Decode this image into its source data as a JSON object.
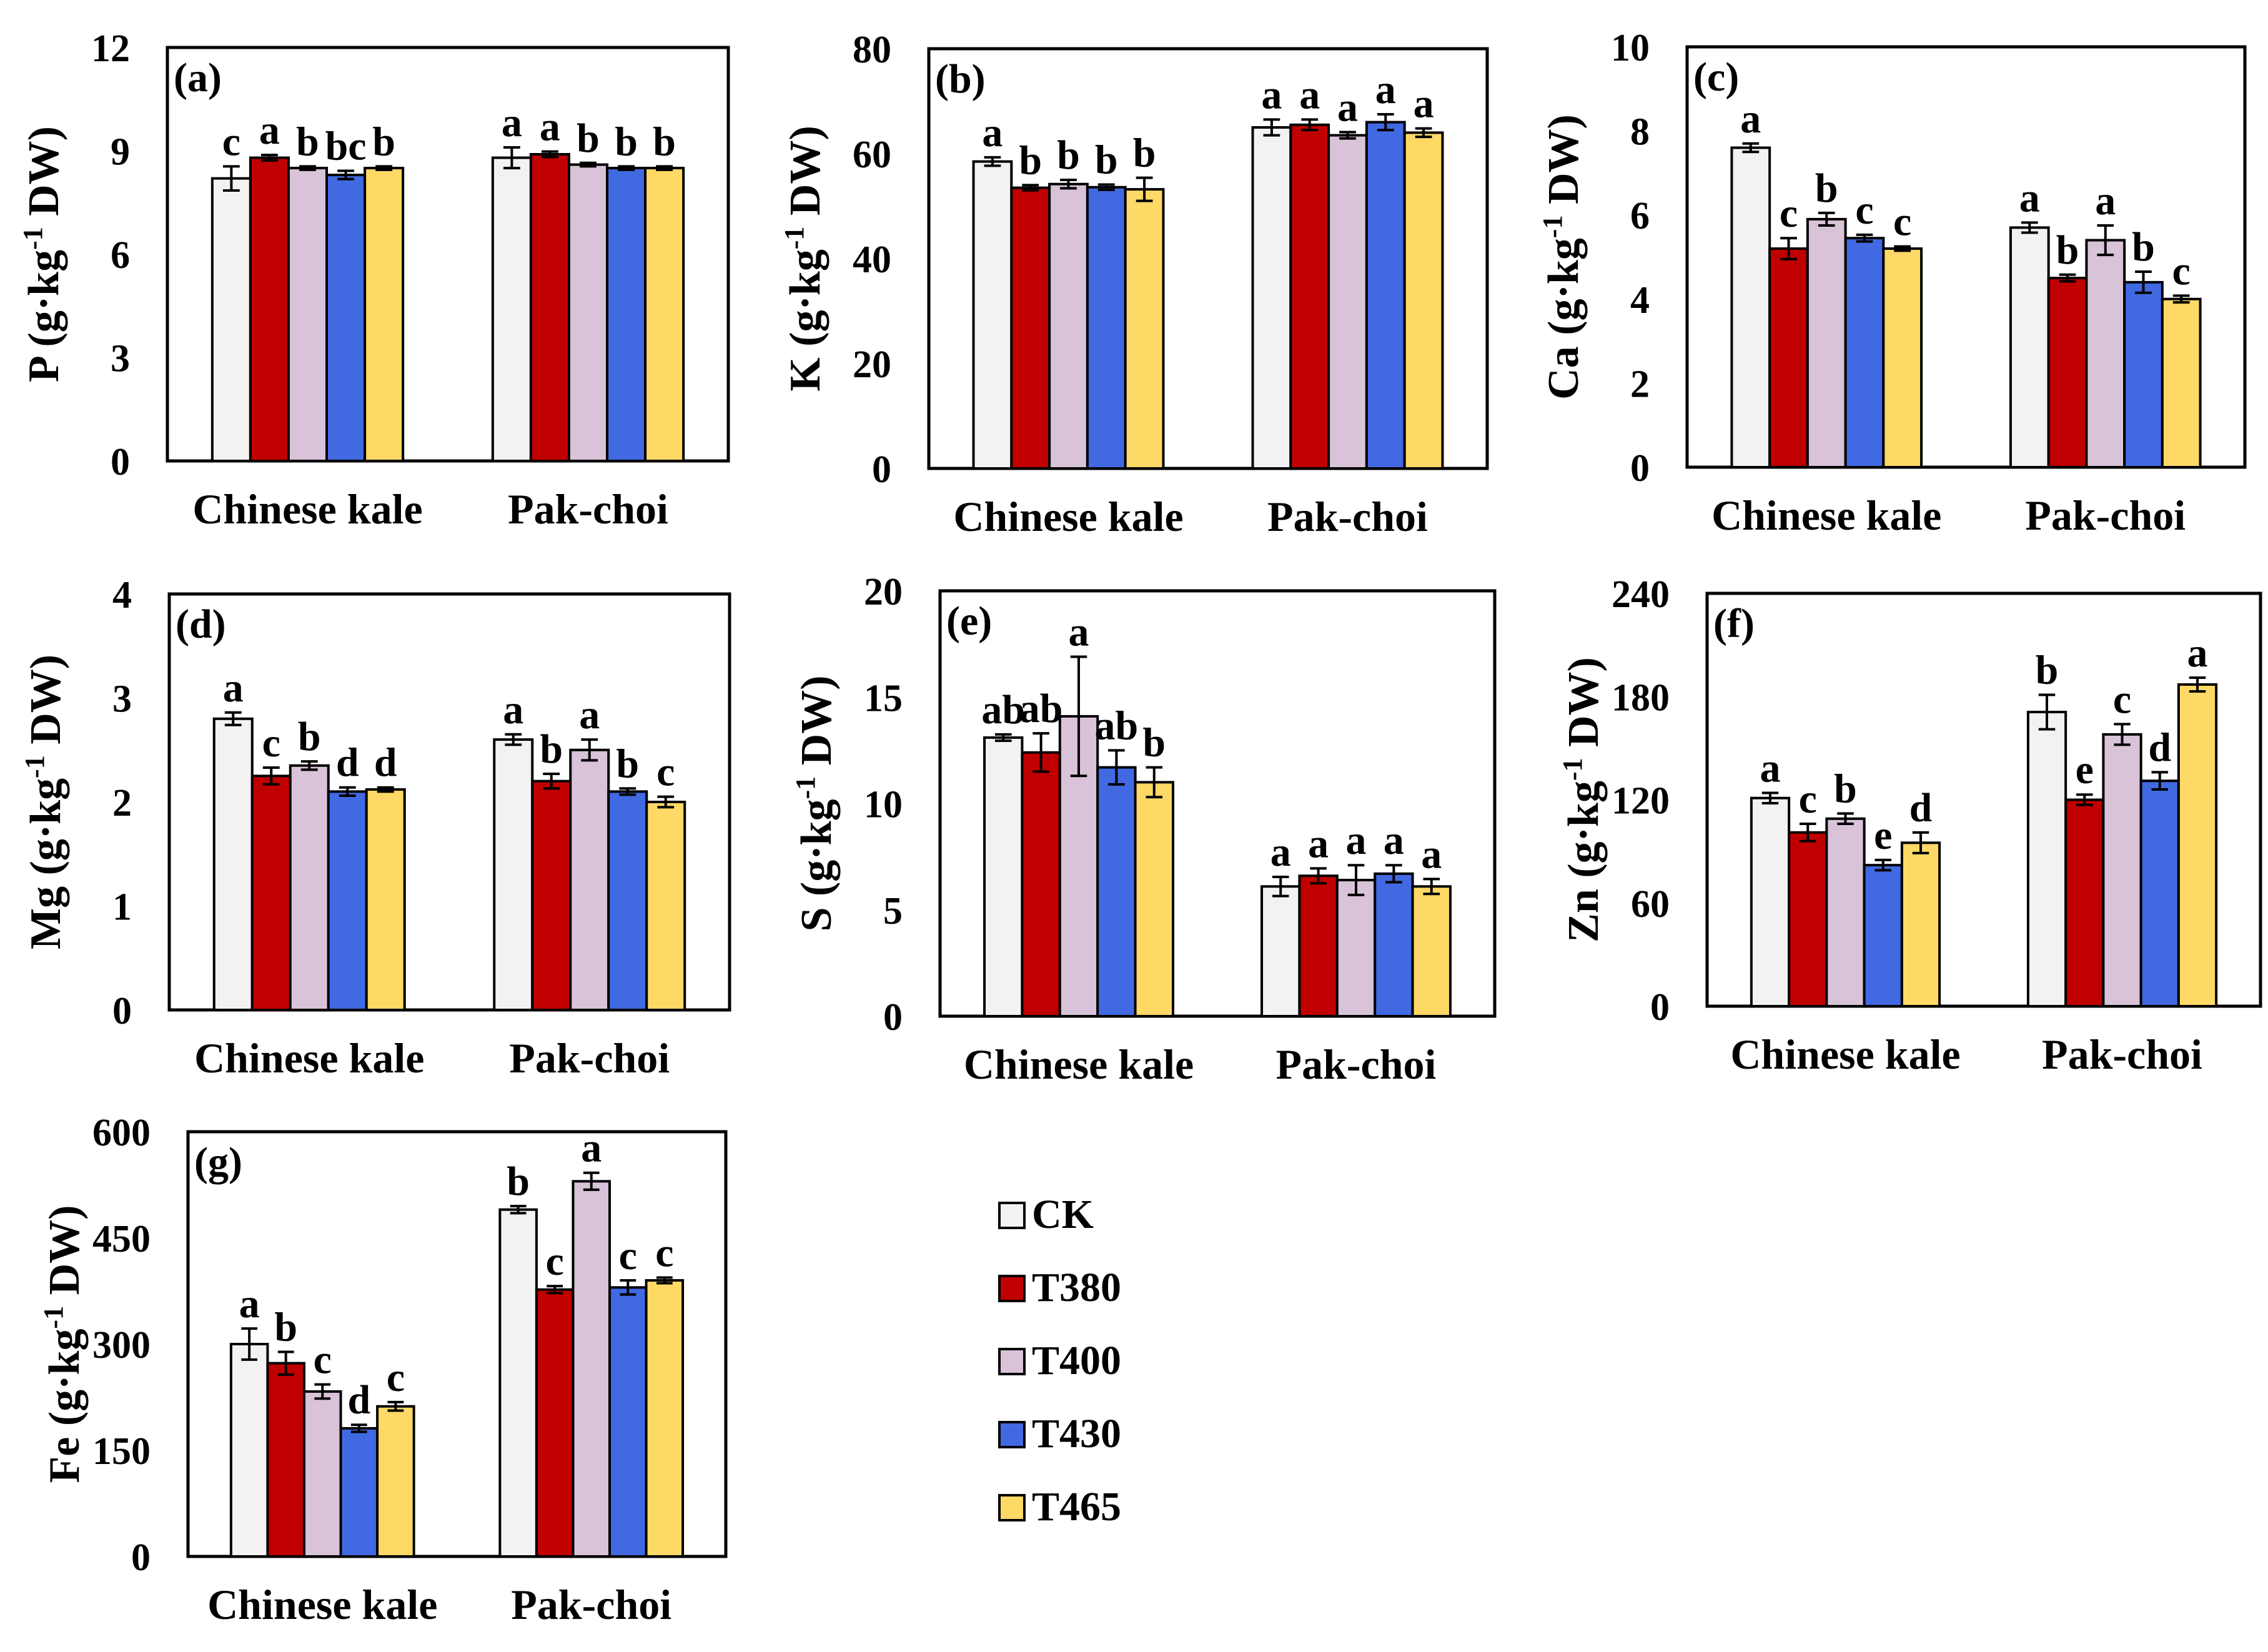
{
  "series_names": [
    "CK",
    "T380",
    "T400",
    "T430",
    "T465"
  ],
  "colors": {
    "CK": "#f2f2f2",
    "T380": "#c00000",
    "T400": "#d9c3d9",
    "T430": "#4169e1",
    "T465": "#ffd966",
    "axis": "#000000"
  },
  "chart_data": [
    {
      "type": "bar",
      "panel": "(a)",
      "ylabel_main": "P (g·kg",
      "ylabel_sup": "-1",
      "ylabel_tail": " DW)",
      "ylim": [
        0,
        12
      ],
      "yticks": [
        "0",
        "3",
        "6",
        "9",
        "12"
      ],
      "categories": [
        "Chinese kale",
        "Pak-choi"
      ],
      "series": [
        {
          "name": "CK",
          "values": [
            8.2,
            8.8
          ],
          "errors": [
            0.35,
            0.3
          ],
          "letters": [
            "c",
            "a"
          ]
        },
        {
          "name": "T380",
          "values": [
            8.8,
            8.9
          ],
          "errors": [
            0.08,
            0.08
          ],
          "letters": [
            "a",
            "a"
          ]
        },
        {
          "name": "T400",
          "values": [
            8.5,
            8.6
          ],
          "errors": [
            0.05,
            0.05
          ],
          "letters": [
            "b",
            "b"
          ]
        },
        {
          "name": "T430",
          "values": [
            8.3,
            8.5
          ],
          "errors": [
            0.12,
            0.05
          ],
          "letters": [
            "bc",
            "b"
          ]
        },
        {
          "name": "T465",
          "values": [
            8.5,
            8.5
          ],
          "errors": [
            0.05,
            0.05
          ],
          "letters": [
            "b",
            "b"
          ]
        }
      ]
    },
    {
      "type": "bar",
      "panel": "(b)",
      "ylabel_main": "K (g·kg",
      "ylabel_sup": "-1",
      "ylabel_tail": " DW)",
      "ylim": [
        0,
        80
      ],
      "yticks": [
        "0",
        "20",
        "40",
        "60",
        "80"
      ],
      "categories": [
        "Chinese kale",
        "Pak-choi"
      ],
      "series": [
        {
          "name": "CK",
          "values": [
            58.5,
            65
          ],
          "errors": [
            0.8,
            1.5
          ],
          "letters": [
            "a",
            "a"
          ]
        },
        {
          "name": "T380",
          "values": [
            53.5,
            65.5
          ],
          "errors": [
            0.5,
            1.0
          ],
          "letters": [
            "b",
            "a"
          ]
        },
        {
          "name": "T400",
          "values": [
            54.2,
            63.5
          ],
          "errors": [
            0.8,
            0.6
          ],
          "letters": [
            "b",
            "a"
          ]
        },
        {
          "name": "T430",
          "values": [
            53.6,
            66
          ],
          "errors": [
            0.5,
            1.5
          ],
          "letters": [
            "b",
            "a"
          ]
        },
        {
          "name": "T465",
          "values": [
            53.2,
            64
          ],
          "errors": [
            2.2,
            0.8
          ],
          "letters": [
            "b",
            "a"
          ]
        }
      ]
    },
    {
      "type": "bar",
      "panel": "(c)",
      "ylabel_main": "Ca (g·kg",
      "ylabel_sup": "-1",
      "ylabel_tail": " DW)",
      "ylim": [
        0,
        10
      ],
      "yticks": [
        "0",
        "2",
        "4",
        "6",
        "8",
        "10"
      ],
      "categories": [
        "Chinese kale",
        "Pak-choi"
      ],
      "series": [
        {
          "name": "CK",
          "values": [
            7.6,
            5.7
          ],
          "errors": [
            0.1,
            0.12
          ],
          "letters": [
            "a",
            "a"
          ]
        },
        {
          "name": "T380",
          "values": [
            5.2,
            4.5
          ],
          "errors": [
            0.25,
            0.08
          ],
          "letters": [
            "c",
            "b"
          ]
        },
        {
          "name": "T400",
          "values": [
            5.9,
            5.4
          ],
          "errors": [
            0.15,
            0.35
          ],
          "letters": [
            "b",
            "a"
          ]
        },
        {
          "name": "T430",
          "values": [
            5.45,
            4.4
          ],
          "errors": [
            0.08,
            0.25
          ],
          "letters": [
            "c",
            "b"
          ]
        },
        {
          "name": "T465",
          "values": [
            5.2,
            4.0
          ],
          "errors": [
            0.05,
            0.08
          ],
          "letters": [
            "c",
            "c"
          ]
        }
      ]
    },
    {
      "type": "bar",
      "panel": "(d)",
      "ylabel_main": "Mg (g·kg",
      "ylabel_sup": "-1",
      "ylabel_tail": " DW)",
      "ylim": [
        0,
        4
      ],
      "yticks": [
        "0",
        "1",
        "2",
        "3",
        "4"
      ],
      "categories": [
        "Chinese kale",
        "Pak-choi"
      ],
      "series": [
        {
          "name": "CK",
          "values": [
            2.8,
            2.6
          ],
          "errors": [
            0.06,
            0.05
          ],
          "letters": [
            "a",
            "a"
          ]
        },
        {
          "name": "T380",
          "values": [
            2.25,
            2.2
          ],
          "errors": [
            0.08,
            0.07
          ],
          "letters": [
            "c",
            "b"
          ]
        },
        {
          "name": "T400",
          "values": [
            2.35,
            2.5
          ],
          "errors": [
            0.04,
            0.1
          ],
          "letters": [
            "b",
            "a"
          ]
        },
        {
          "name": "T430",
          "values": [
            2.1,
            2.1
          ],
          "errors": [
            0.04,
            0.03
          ],
          "letters": [
            "d",
            "b"
          ]
        },
        {
          "name": "T465",
          "values": [
            2.12,
            2.0
          ],
          "errors": [
            0.02,
            0.05
          ],
          "letters": [
            "d",
            "c"
          ]
        }
      ]
    },
    {
      "type": "bar",
      "panel": "(e)",
      "ylabel_main": "S (g·kg",
      "ylabel_sup": "-1",
      "ylabel_tail": " DW)",
      "ylim": [
        0,
        20
      ],
      "yticks": [
        "0",
        "5",
        "10",
        "15",
        "20"
      ],
      "categories": [
        "Chinese kale",
        "Pak-choi"
      ],
      "series": [
        {
          "name": "CK",
          "values": [
            13.1,
            6.1
          ],
          "errors": [
            0.15,
            0.45
          ],
          "letters": [
            "ab",
            "a"
          ]
        },
        {
          "name": "T380",
          "values": [
            12.4,
            6.6
          ],
          "errors": [
            0.9,
            0.35
          ],
          "letters": [
            "ab",
            "a"
          ]
        },
        {
          "name": "T400",
          "values": [
            14.1,
            6.4
          ],
          "errors": [
            2.8,
            0.7
          ],
          "letters": [
            "a",
            "a"
          ]
        },
        {
          "name": "T430",
          "values": [
            11.7,
            6.7
          ],
          "errors": [
            0.8,
            0.4
          ],
          "letters": [
            "ab",
            "a"
          ]
        },
        {
          "name": "T465",
          "values": [
            11.0,
            6.1
          ],
          "errors": [
            0.7,
            0.35
          ],
          "letters": [
            "b",
            "a"
          ]
        }
      ]
    },
    {
      "type": "bar",
      "panel": "(f)",
      "ylabel_main": "Zn (g·kg",
      "ylabel_sup": "-1",
      "ylabel_tail": " DW)",
      "ylim": [
        0,
        240
      ],
      "yticks": [
        "0",
        "60",
        "120",
        "180",
        "240"
      ],
      "categories": [
        "Chinese kale",
        "Pak-choi"
      ],
      "series": [
        {
          "name": "CK",
          "values": [
            121,
            171
          ],
          "errors": [
            3,
            10
          ],
          "letters": [
            "a",
            "b"
          ]
        },
        {
          "name": "T380",
          "values": [
            101,
            120
          ],
          "errors": [
            5,
            3
          ],
          "letters": [
            "c",
            "e"
          ]
        },
        {
          "name": "T400",
          "values": [
            109,
            158
          ],
          "errors": [
            3,
            6
          ],
          "letters": [
            "b",
            "c"
          ]
        },
        {
          "name": "T430",
          "values": [
            82,
            131
          ],
          "errors": [
            3,
            5
          ],
          "letters": [
            "e",
            "d"
          ]
        },
        {
          "name": "T465",
          "values": [
            95,
            187
          ],
          "errors": [
            6,
            4
          ],
          "letters": [
            "d",
            "a"
          ]
        }
      ]
    },
    {
      "type": "bar",
      "panel": "(g)",
      "ylabel_main": "Fe (g·kg",
      "ylabel_sup": "-1",
      "ylabel_tail": " DW)",
      "ylim": [
        0,
        600
      ],
      "yticks": [
        "0",
        "150",
        "300",
        "450",
        "600"
      ],
      "categories": [
        "Chinese kale",
        "Pak-choi"
      ],
      "series": [
        {
          "name": "CK",
          "values": [
            300,
            490
          ],
          "errors": [
            22,
            5
          ],
          "letters": [
            "a",
            "b"
          ]
        },
        {
          "name": "T380",
          "values": [
            273,
            377
          ],
          "errors": [
            16,
            5
          ],
          "letters": [
            "b",
            "c"
          ]
        },
        {
          "name": "T400",
          "values": [
            233,
            530
          ],
          "errors": [
            10,
            12
          ],
          "letters": [
            "c",
            "a"
          ]
        },
        {
          "name": "T430",
          "values": [
            181,
            380
          ],
          "errors": [
            5,
            10
          ],
          "letters": [
            "d",
            "c"
          ]
        },
        {
          "name": "T465",
          "values": [
            212,
            390
          ],
          "errors": [
            6,
            4
          ],
          "letters": [
            "c",
            "c"
          ]
        }
      ]
    }
  ]
}
